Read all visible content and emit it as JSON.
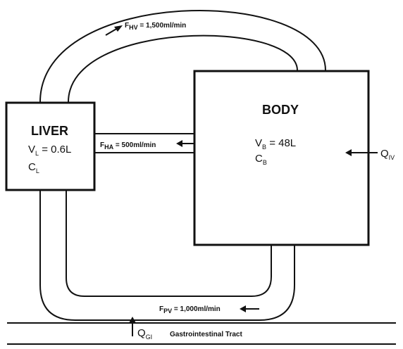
{
  "liver": {
    "title": "LIVER",
    "volume_var": "V",
    "volume_sub": "L",
    "volume_val": " = 0.6L",
    "conc_var": "C",
    "conc_sub": "L"
  },
  "body": {
    "title": "BODY",
    "volume_var": "V",
    "volume_sub": "B",
    "volume_val": " = 48L",
    "conc_var": "C",
    "conc_sub": "B"
  },
  "flows": {
    "hepatic_vein": {
      "var": "F",
      "sub": "HV",
      "val": " = 1,500ml/min"
    },
    "hepatic_artery": {
      "var": "F",
      "sub": "HA",
      "val": " = 500ml/min"
    },
    "portal_vein": {
      "var": "F",
      "sub": "PV",
      "val": " = 1,000ml/min"
    }
  },
  "inputs": {
    "iv": {
      "var": "Q",
      "sub": "IV"
    },
    "gi": {
      "var": "Q",
      "sub": "GI"
    }
  },
  "gi_tract": {
    "label": "Gastrointestinal Tract"
  },
  "colors": {
    "ink": "#111111",
    "background": "#ffffff"
  }
}
